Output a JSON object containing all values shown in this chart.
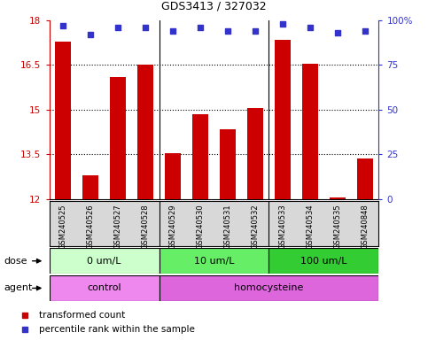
{
  "title": "GDS3413 / 327032",
  "samples": [
    "GSM240525",
    "GSM240526",
    "GSM240527",
    "GSM240528",
    "GSM240529",
    "GSM240530",
    "GSM240531",
    "GSM240532",
    "GSM240533",
    "GSM240534",
    "GSM240535",
    "GSM240848"
  ],
  "bar_values": [
    17.3,
    12.8,
    16.1,
    16.5,
    13.55,
    14.85,
    14.35,
    15.05,
    17.35,
    16.55,
    12.05,
    13.35
  ],
  "percentile_values": [
    97,
    92,
    96,
    96,
    94,
    96,
    94,
    94,
    98,
    96,
    93,
    94
  ],
  "ylim_left": [
    12,
    18
  ],
  "ylim_right": [
    0,
    100
  ],
  "yticks_left": [
    12,
    13.5,
    15,
    16.5,
    18
  ],
  "yticks_right": [
    0,
    25,
    50,
    75,
    100
  ],
  "ytick_labels_right": [
    "0",
    "25",
    "50",
    "75",
    "100%"
  ],
  "bar_color": "#cc0000",
  "dot_color": "#3333cc",
  "plot_bg_color": "#ffffff",
  "dose_groups": [
    {
      "label": "0 um/L",
      "start": 0,
      "end": 3,
      "color": "#ccffcc"
    },
    {
      "label": "10 um/L",
      "start": 4,
      "end": 7,
      "color": "#66ee66"
    },
    {
      "label": "100 um/L",
      "start": 8,
      "end": 11,
      "color": "#33cc33"
    }
  ],
  "agent_groups": [
    {
      "label": "control",
      "start": 0,
      "end": 3,
      "color": "#ee88ee"
    },
    {
      "label": "homocysteine",
      "start": 4,
      "end": 11,
      "color": "#dd66dd"
    }
  ],
  "group_boundaries": [
    3.5,
    7.5
  ],
  "legend_items": [
    {
      "label": "transformed count",
      "color": "#cc0000"
    },
    {
      "label": "percentile rank within the sample",
      "color": "#3333cc"
    }
  ],
  "dose_label": "dose",
  "agent_label": "agent"
}
